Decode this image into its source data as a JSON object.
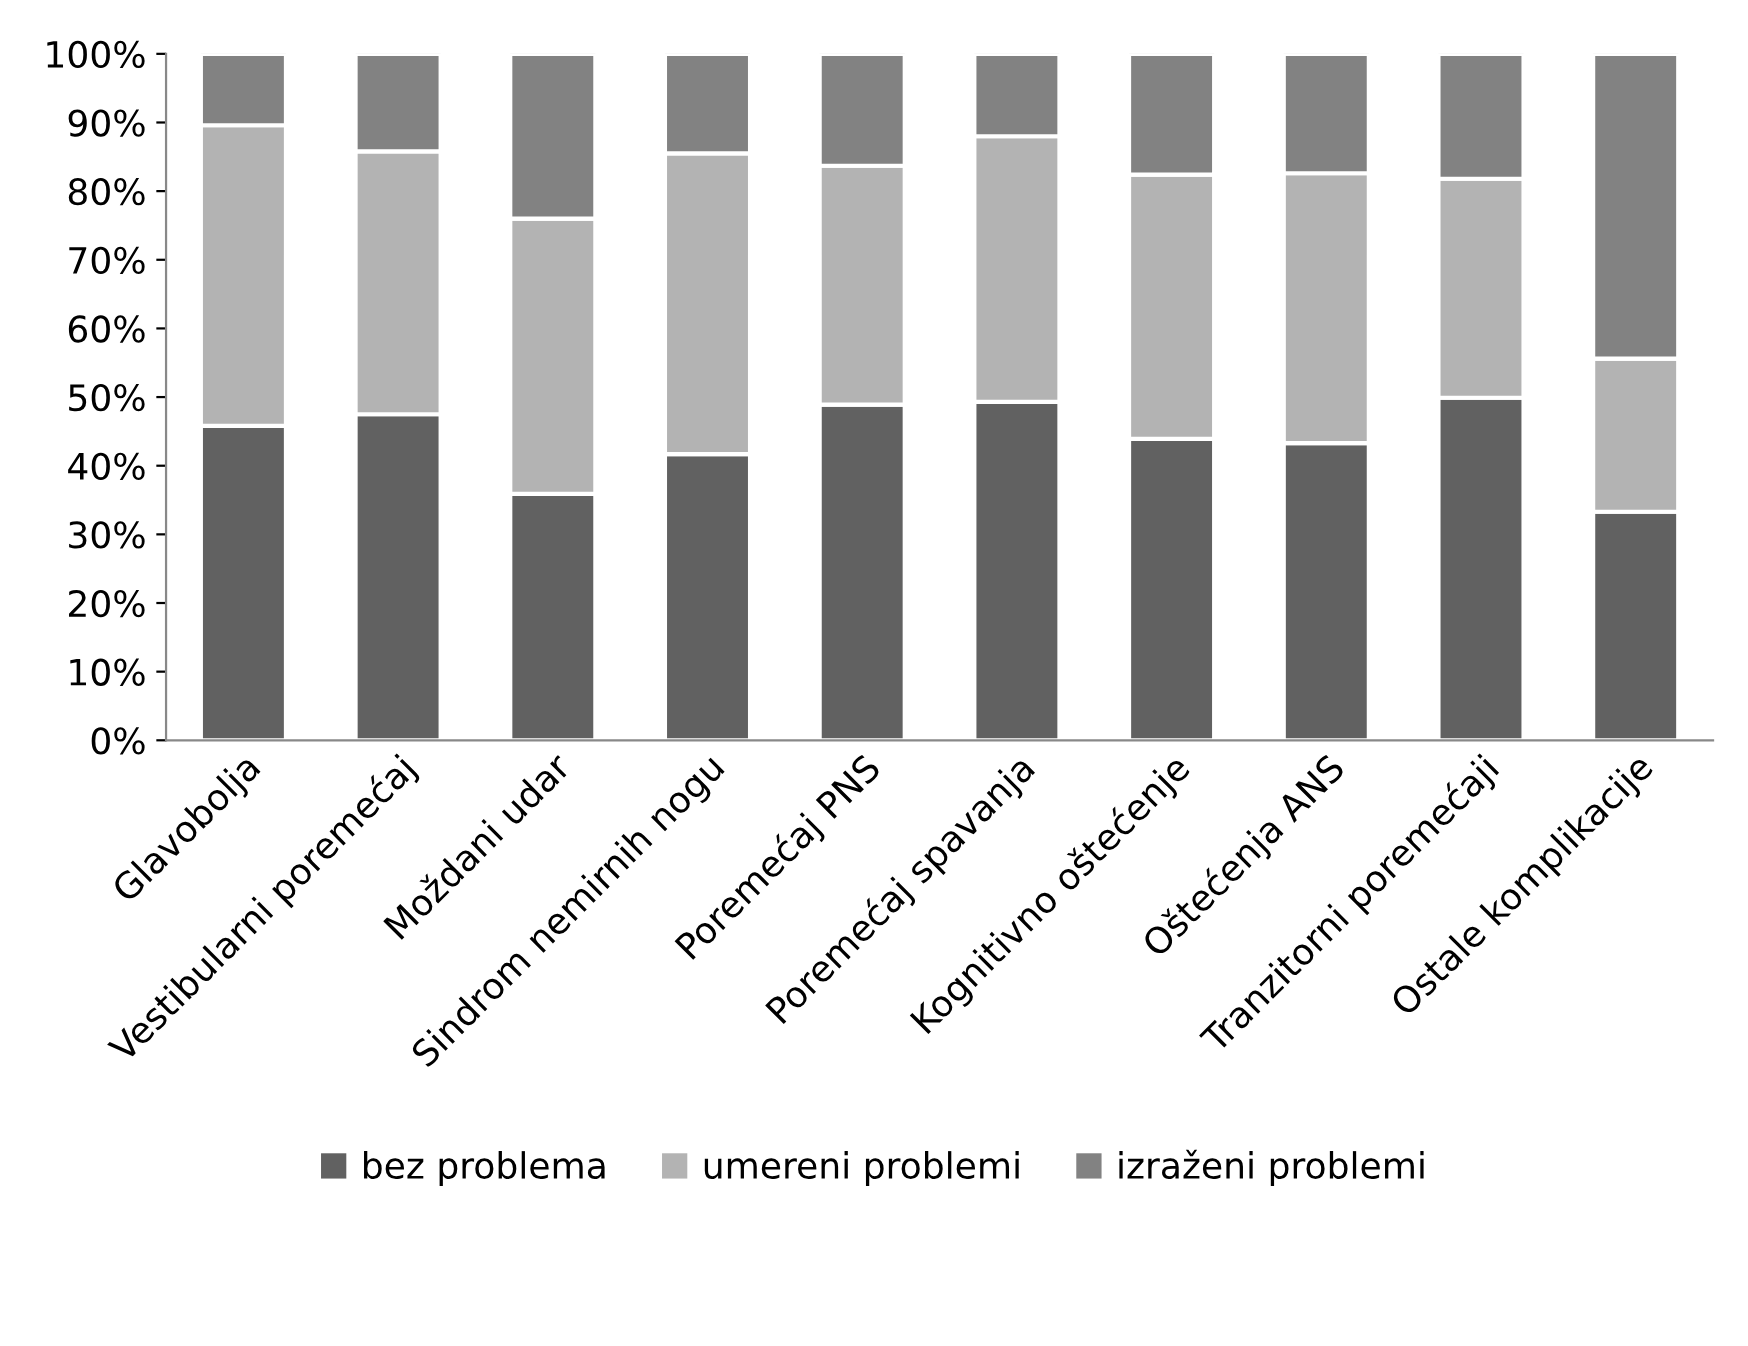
{
  "chart_data": {
    "type": "bar",
    "stacked": true,
    "categories": [
      "Glavobolja",
      "Vestibularni poremećaj",
      "Moždani udar",
      "Sindrom nemirnih nogu",
      "Poremećaj PNS",
      "Poremećaj spavanja",
      "Kognitivno oštećenje",
      "Oštećenja ANS",
      "Tranzitorni poremećaji",
      "Ostale komplikacije"
    ],
    "series": [
      {
        "name": "bez problema",
        "color": "#616161",
        "values": [
          45.8,
          47.5,
          35.9,
          41.7,
          48.9,
          49.3,
          43.9,
          43.3,
          49.9,
          33.3
        ]
      },
      {
        "name": "umereni problemi",
        "color": "#b3b3b3",
        "values": [
          43.8,
          38.3,
          40.1,
          43.8,
          34.8,
          38.7,
          38.5,
          39.3,
          31.9,
          22.3
        ]
      },
      {
        "name": "izraženi problemi",
        "color": "#828282",
        "values": [
          10.4,
          14.2,
          24.0,
          14.5,
          16.3,
          12.0,
          17.6,
          17.4,
          18.2,
          44.4
        ]
      }
    ],
    "ylim": [
      0,
      100
    ],
    "yticks": [
      {
        "value": 0,
        "label": "0%"
      },
      {
        "value": 10,
        "label": "10%"
      },
      {
        "value": 20,
        "label": "20%"
      },
      {
        "value": 30,
        "label": "30%"
      },
      {
        "value": 40,
        "label": "40%"
      },
      {
        "value": 50,
        "label": "50%"
      },
      {
        "value": 60,
        "label": "60%"
      },
      {
        "value": 70,
        "label": "70%"
      },
      {
        "value": 80,
        "label": "80%"
      },
      {
        "value": 90,
        "label": "90%"
      },
      {
        "value": 100,
        "label": "100%"
      }
    ],
    "grid": false,
    "legend": "bottom"
  }
}
